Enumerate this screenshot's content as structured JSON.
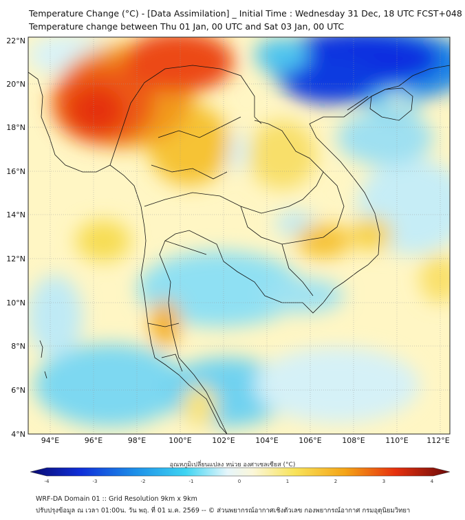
{
  "title_line1": "Temperature Change (°C) - [Data Assimilation] _ Initial Time : Wednesday 31 Dec, 18 UTC FCST+048",
  "title_line2": "Temperature change between Thu 01 Jan, 00 UTC and Sat 03 Jan, 00 UTC",
  "lat_labels": [
    "4°N",
    "6°N",
    "8°N",
    "10°N",
    "12°N",
    "14°N",
    "16°N",
    "18°N",
    "20°N",
    "22°N"
  ],
  "lon_labels": [
    "94°E",
    "96°E",
    "98°E",
    "100°E",
    "102°E",
    "104°E",
    "106°E",
    "108°E",
    "110°E",
    "112°E"
  ],
  "colorbar": {
    "label": "อุณหภูมิเปลี่ยนแปลง หน่วย องศาเซลเซียส (°C)",
    "ticks": [
      "-4",
      "-3",
      "-2",
      "-1",
      "0",
      "1",
      "2",
      "3",
      "4"
    ]
  },
  "footer_line1": "WRF-DA Domain 01 :: Grid Resolution 9km x 9km",
  "footer_line2": "ปรับปรุงข้อมูล ณ เวลา 01:00น. วัน พฤ. ที่ 01 ม.ค. 2569 -- © ส่วนพยากรณ์อากาศเชิงตัวเลข กองพยากรณ์อากาศ กรมอุตุนิยมวิทยา"
}
